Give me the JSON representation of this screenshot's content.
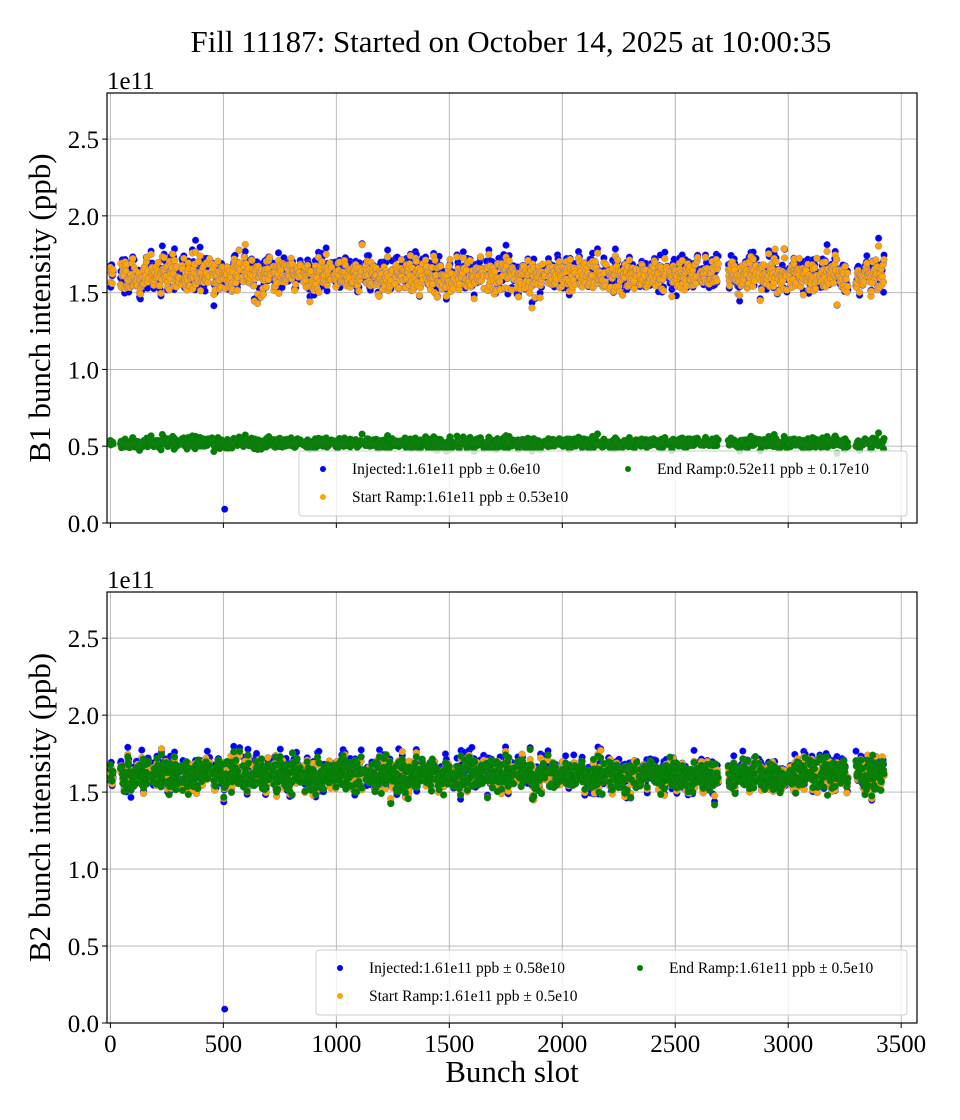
{
  "chart_data": [
    {
      "type": "scatter",
      "panel": "B1",
      "title": "Fill 11187: Started on October 14, 2025 at 10:00:35",
      "xlabel": "",
      "ylabel": "B1 bunch intensity (ppb)",
      "y_offset_label": "1e11",
      "xlim": [
        -15,
        3570
      ],
      "ylim": [
        0,
        2.8
      ],
      "xticks": [
        0,
        500,
        1000,
        1500,
        2000,
        2500,
        3000,
        3500
      ],
      "xtick_labels_visible": false,
      "yticks": [
        0.0,
        0.5,
        1.0,
        1.5,
        2.0,
        2.5
      ],
      "ytick_labels": [
        "0.0",
        "0.5",
        "1.0",
        "1.5",
        "2.0",
        "2.5"
      ],
      "grid": true,
      "legend_placement": "lower-right",
      "trains": [
        [
          0,
          12
        ],
        [
          45,
          170
        ],
        [
          180,
          305
        ],
        [
          315,
          440
        ],
        [
          450,
          575
        ],
        [
          585,
          710
        ],
        [
          720,
          845
        ],
        [
          855,
          980
        ],
        [
          990,
          1115
        ],
        [
          1125,
          1250
        ],
        [
          1260,
          1385
        ],
        [
          1395,
          1520
        ],
        [
          1530,
          1655
        ],
        [
          1665,
          1790
        ],
        [
          1800,
          1925
        ],
        [
          1935,
          2060
        ],
        [
          2070,
          2195
        ],
        [
          2205,
          2330
        ],
        [
          2340,
          2465
        ],
        [
          2475,
          2600
        ],
        [
          2610,
          2690
        ],
        [
          2735,
          2860
        ],
        [
          2870,
          2995
        ],
        [
          3005,
          3130
        ],
        [
          3140,
          3265
        ],
        [
          3300,
          3425
        ]
      ],
      "series": [
        {
          "name": "Injected",
          "legend": "Injected:1.61e11 ppb ± 0.6e10",
          "color": "#0000ff",
          "mean": 1.61,
          "spread": 0.06,
          "outliers": [
            {
              "x": 506,
              "y": 0.09
            }
          ]
        },
        {
          "name": "Start Ramp",
          "legend": "Start Ramp:1.61e11 ppb ± 0.53e10",
          "color": "#ffa500",
          "mean": 1.61,
          "spread": 0.053,
          "outliers": []
        },
        {
          "name": "End Ramp",
          "legend": "End Ramp:0.52e11 ppb ± 0.17e10",
          "color": "#008000",
          "mean": 0.52,
          "spread": 0.017,
          "outliers": []
        }
      ]
    },
    {
      "type": "scatter",
      "panel": "B2",
      "title": "",
      "xlabel": "Bunch slot",
      "ylabel": "B2 bunch intensity (ppb)",
      "y_offset_label": "1e11",
      "xlim": [
        -15,
        3570
      ],
      "ylim": [
        0,
        2.8
      ],
      "xticks": [
        0,
        500,
        1000,
        1500,
        2000,
        2500,
        3000,
        3500
      ],
      "xtick_labels": [
        "0",
        "500",
        "1000",
        "1500",
        "2000",
        "2500",
        "3000",
        "3500"
      ],
      "xtick_labels_visible": true,
      "yticks": [
        0.0,
        0.5,
        1.0,
        1.5,
        2.0,
        2.5
      ],
      "ytick_labels": [
        "0.0",
        "0.5",
        "1.0",
        "1.5",
        "2.0",
        "2.5"
      ],
      "grid": true,
      "legend_placement": "lower-right",
      "trains": [
        [
          0,
          12
        ],
        [
          45,
          170
        ],
        [
          180,
          305
        ],
        [
          315,
          440
        ],
        [
          450,
          575
        ],
        [
          585,
          710
        ],
        [
          720,
          845
        ],
        [
          855,
          980
        ],
        [
          990,
          1115
        ],
        [
          1125,
          1250
        ],
        [
          1260,
          1385
        ],
        [
          1395,
          1520
        ],
        [
          1530,
          1655
        ],
        [
          1665,
          1790
        ],
        [
          1800,
          1925
        ],
        [
          1935,
          2060
        ],
        [
          2070,
          2195
        ],
        [
          2205,
          2330
        ],
        [
          2340,
          2465
        ],
        [
          2475,
          2600
        ],
        [
          2610,
          2690
        ],
        [
          2735,
          2860
        ],
        [
          2870,
          2995
        ],
        [
          3005,
          3130
        ],
        [
          3140,
          3265
        ],
        [
          3300,
          3425
        ]
      ],
      "series": [
        {
          "name": "Injected",
          "legend": "Injected:1.61e11 ppb ± 0.58e10",
          "color": "#0000ff",
          "mean": 1.61,
          "spread": 0.058,
          "outliers": [
            {
              "x": 506,
              "y": 0.09
            }
          ]
        },
        {
          "name": "Start Ramp",
          "legend": "Start Ramp:1.61e11 ppb ± 0.5e10",
          "color": "#ffa500",
          "mean": 1.61,
          "spread": 0.05,
          "outliers": []
        },
        {
          "name": "End Ramp",
          "legend": "End Ramp:1.61e11 ppb ± 0.5e10",
          "color": "#008000",
          "mean": 1.61,
          "spread": 0.05,
          "outliers": []
        }
      ]
    }
  ]
}
